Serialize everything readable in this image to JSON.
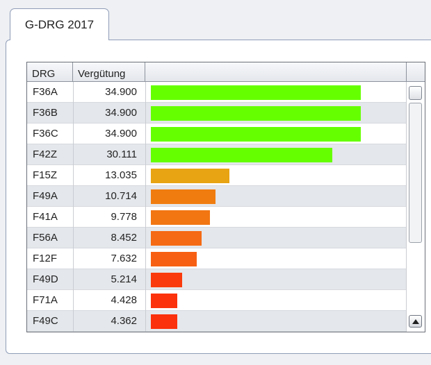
{
  "tab": {
    "label": "G-DRG 2017"
  },
  "table": {
    "columns": [
      "DRG",
      "Vergütung"
    ],
    "rows": [
      {
        "drg": "F36A",
        "value": "34.900",
        "num": 34900,
        "color": "#66ff00"
      },
      {
        "drg": "F36B",
        "value": "34.900",
        "num": 34900,
        "color": "#66ff00"
      },
      {
        "drg": "F36C",
        "value": "34.900",
        "num": 34900,
        "color": "#66ff00"
      },
      {
        "drg": "F42Z",
        "value": "30.111",
        "num": 30111,
        "color": "#66ff00"
      },
      {
        "drg": "F15Z",
        "value": "13.035",
        "num": 13035,
        "color": "#e8a412"
      },
      {
        "drg": "F49A",
        "value": "10.714",
        "num": 10714,
        "color": "#f07c10"
      },
      {
        "drg": "F41A",
        "value": "9.778",
        "num": 9778,
        "color": "#f27612"
      },
      {
        "drg": "F56A",
        "value": "8.452",
        "num": 8452,
        "color": "#f56a14"
      },
      {
        "drg": "F12F",
        "value": "7.632",
        "num": 7632,
        "color": "#f76012"
      },
      {
        "drg": "F49D",
        "value": "5.214",
        "num": 5214,
        "color": "#fa3a0c"
      },
      {
        "drg": "F71A",
        "value": "4.428",
        "num": 4428,
        "color": "#fb320c"
      },
      {
        "drg": "F49C",
        "value": "4.362",
        "num": 4362,
        "color": "#fb300c"
      }
    ]
  }
}
